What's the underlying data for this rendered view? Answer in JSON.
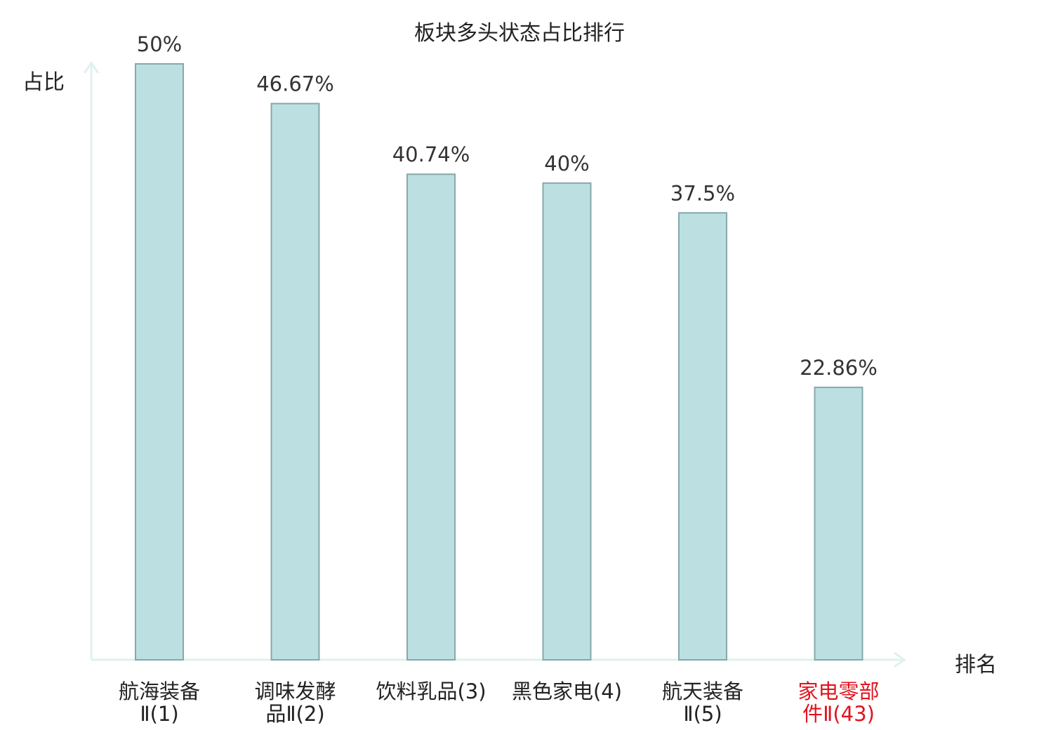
{
  "chart_data": {
    "type": "bar",
    "title": "板块多头状态占比排行",
    "ylabel": "占比",
    "xlabel": "排名",
    "categories": [
      [
        "航海装备",
        "Ⅱ(1)"
      ],
      [
        "调味发酵",
        "品Ⅱ(2)"
      ],
      [
        "饮料乳品(3)"
      ],
      [
        "黑色家电(4)"
      ],
      [
        "航天装备",
        "Ⅱ(5)"
      ],
      [
        "家电零部",
        "件Ⅱ(43)"
      ]
    ],
    "values": [
      50,
      46.67,
      40.74,
      40,
      37.5,
      22.86
    ],
    "value_labels": [
      "50%",
      "46.67%",
      "40.74%",
      "40%",
      "37.5%",
      "22.86%"
    ],
    "ylim": [
      0,
      50
    ],
    "grid": false,
    "highlight_index": 5,
    "colors": {
      "bar_fill": "#bce0e2",
      "bar_stroke": "#86a8ab",
      "axis": "#dff1ef",
      "highlight_text": "#e0141e",
      "text": "#222222",
      "value_text": "#333333"
    }
  }
}
